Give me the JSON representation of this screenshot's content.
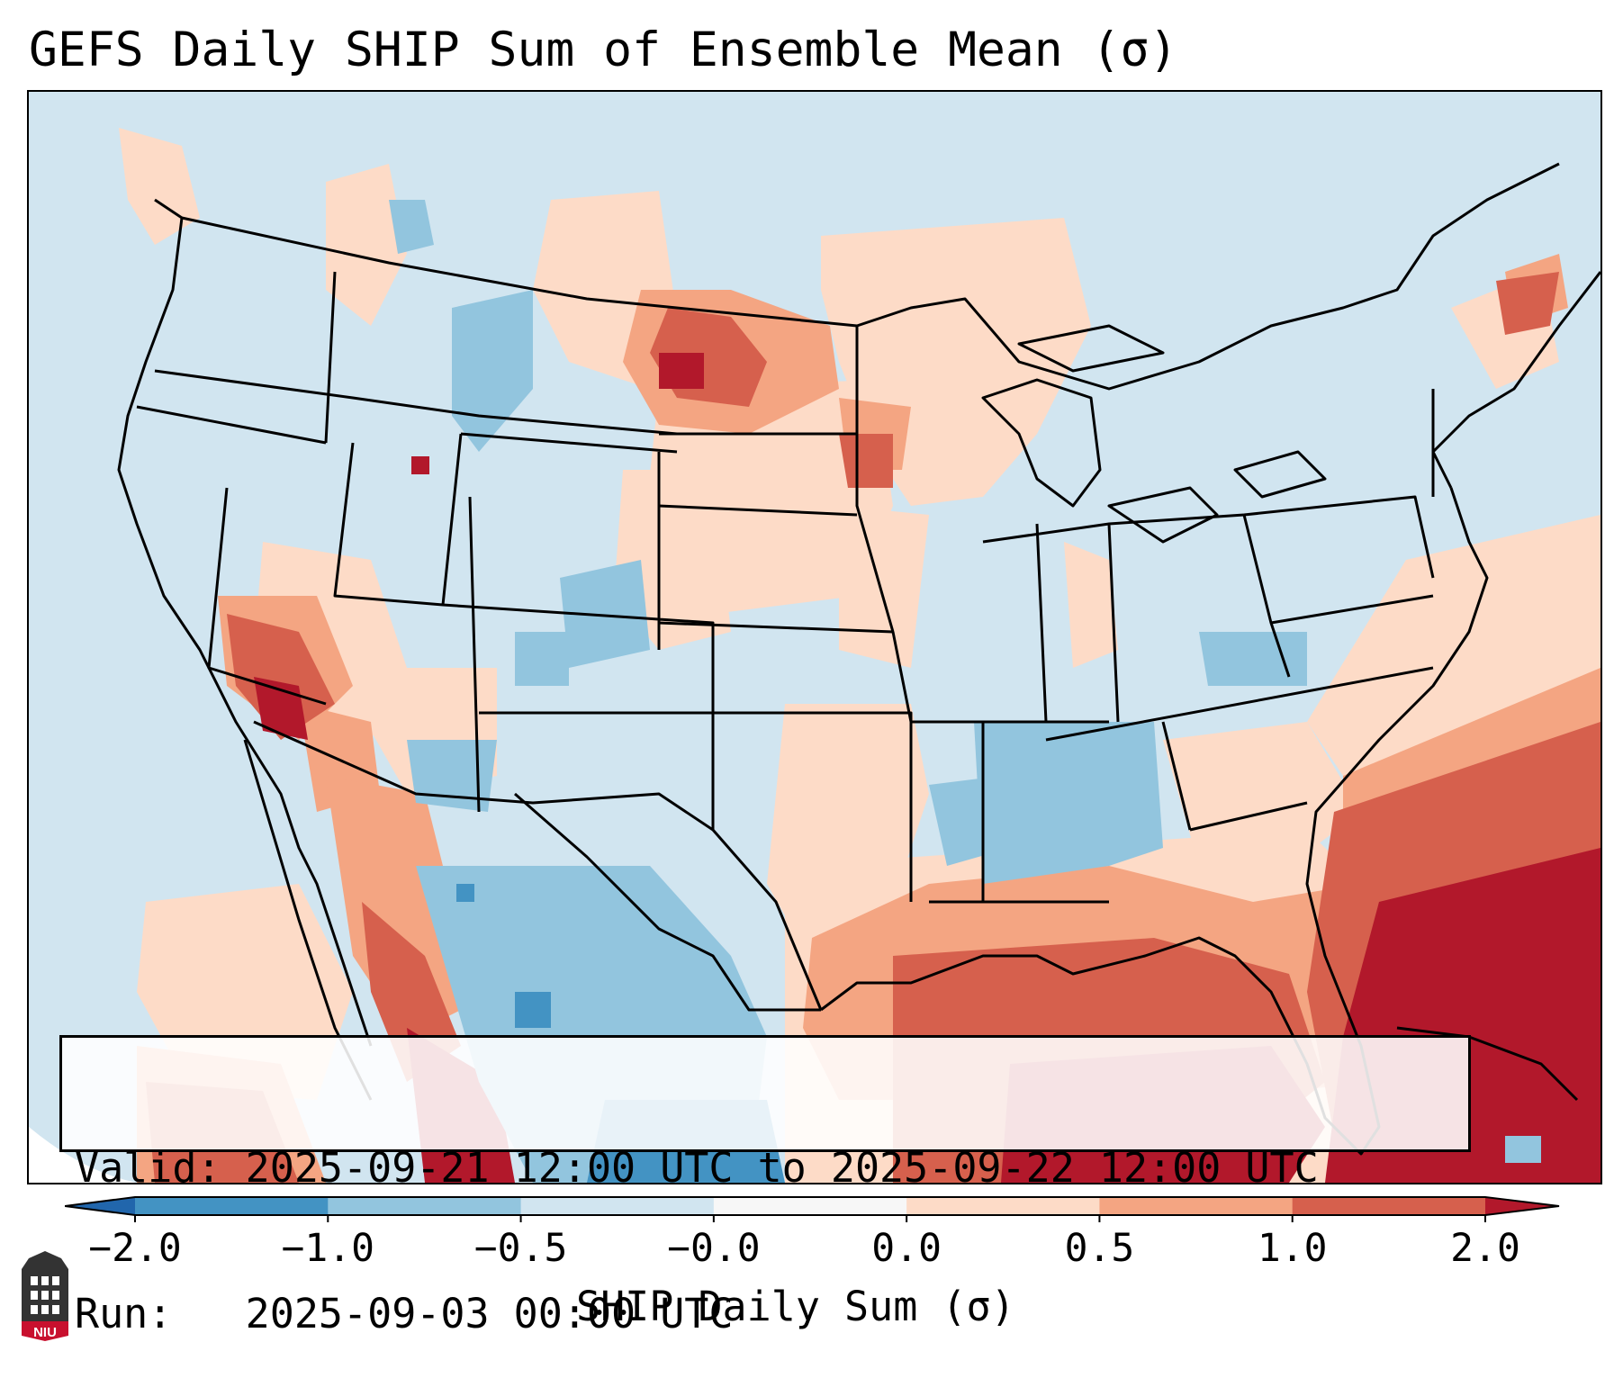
{
  "title": "GEFS Daily SHIP Sum of Ensemble Mean (σ)",
  "info": {
    "valid_line": "Valid: 2025-09-21 12:00 UTC to 2025-09-22 12:00 UTC",
    "run_line": "Run:   2025-09-03 00:00 UTC"
  },
  "colorbar": {
    "label": "SHIP Daily Sum (σ)",
    "ticks": [
      "−2.0",
      "−1.0",
      "−0.5",
      "−0.0",
      "0.0",
      "0.5",
      "1.0",
      "2.0"
    ],
    "colors": [
      "#2166ac",
      "#4393c3",
      "#92c5de",
      "#d1e5f0",
      "#f7f7f7",
      "#fddbc7",
      "#f4a582",
      "#d6604d",
      "#b2182b"
    ],
    "extend": "both"
  },
  "map": {
    "region": "CONUS",
    "background_value_color": "#d1e5f0"
  },
  "logo": {
    "text": "NIU",
    "color": "#c8102e"
  }
}
